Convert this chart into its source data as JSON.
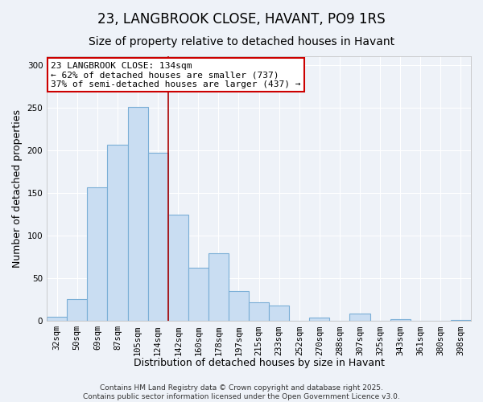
{
  "title": "23, LANGBROOK CLOSE, HAVANT, PO9 1RS",
  "subtitle": "Size of property relative to detached houses in Havant",
  "xlabel": "Distribution of detached houses by size in Havant",
  "ylabel": "Number of detached properties",
  "bar_labels": [
    "32sqm",
    "50sqm",
    "69sqm",
    "87sqm",
    "105sqm",
    "124sqm",
    "142sqm",
    "160sqm",
    "178sqm",
    "197sqm",
    "215sqm",
    "233sqm",
    "252sqm",
    "270sqm",
    "288sqm",
    "307sqm",
    "325sqm",
    "343sqm",
    "361sqm",
    "380sqm",
    "398sqm"
  ],
  "bar_values": [
    5,
    26,
    157,
    206,
    251,
    197,
    125,
    62,
    79,
    35,
    22,
    18,
    0,
    4,
    0,
    9,
    0,
    2,
    0,
    0,
    1
  ],
  "bar_color": "#c9ddf2",
  "bar_edge_color": "#7aaed6",
  "property_line_x": 5.5,
  "property_line_color": "#aa0000",
  "annotation_text": "23 LANGBROOK CLOSE: 134sqm\n← 62% of detached houses are smaller (737)\n37% of semi-detached houses are larger (437) →",
  "annotation_box_color": "#ffffff",
  "annotation_box_edge": "#cc0000",
  "ylim": [
    0,
    310
  ],
  "yticks": [
    0,
    50,
    100,
    150,
    200,
    250,
    300
  ],
  "footer_line1": "Contains HM Land Registry data © Crown copyright and database right 2025.",
  "footer_line2": "Contains public sector information licensed under the Open Government Licence v3.0.",
  "background_color": "#eef2f8",
  "grid_color": "#ffffff",
  "title_fontsize": 12,
  "subtitle_fontsize": 10,
  "axis_label_fontsize": 9,
  "tick_label_fontsize": 7.5,
  "annotation_fontsize": 8,
  "footer_fontsize": 6.5
}
